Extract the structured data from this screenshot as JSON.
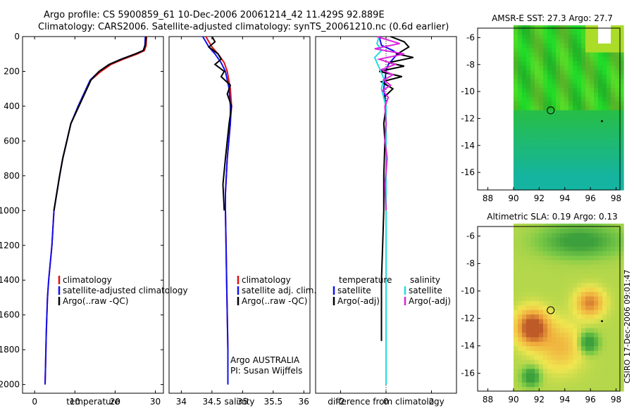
{
  "header": {
    "line1": "Argo profile: CS 5900859_61 10-Dec-2006 20061214_42 11.429S 92.889E",
    "line2": "Climatology: CARS2006. Satellite-adjusted climatology: synTS_20061210.nc (0.6d earlier)"
  },
  "footer": {
    "stamp": "CSIRO 17-Dec-2006 09:01:47"
  },
  "colors": {
    "clim": "#dd1111",
    "sat": "#1111ee",
    "argo": "#000000",
    "sal_sat": "#22dddd",
    "sal_argo": "#dd22dd"
  },
  "chart_data": [
    {
      "type": "line",
      "id": "temperature",
      "xlabel": "temperature",
      "ylabel": "",
      "xlim": [
        -3,
        32
      ],
      "ylim": [
        2050,
        0
      ],
      "xticks": [
        0,
        10,
        20,
        30
      ],
      "yticks": [
        0,
        200,
        400,
        600,
        800,
        1000,
        1200,
        1400,
        1600,
        1800,
        2000
      ],
      "legend": [
        "climatology",
        "satellite-adjusted climatology",
        "Argo(..raw -QC)"
      ],
      "series": [
        {
          "name": "climatology",
          "color": "clim",
          "x": [
            27.8,
            27.7,
            27.3,
            25.5,
            22,
            19,
            16.5,
            14,
            13,
            12,
            11,
            9,
            8,
            7,
            6.2,
            5.5,
            4.8,
            4.3,
            3.9,
            3.5,
            3.2,
            2.9,
            2.7,
            2.6
          ],
          "y": [
            0,
            50,
            80,
            100,
            130,
            160,
            200,
            250,
            300,
            350,
            400,
            500,
            600,
            700,
            800,
            900,
            1000,
            1200,
            1300,
            1400,
            1500,
            1700,
            1900,
            2000
          ]
        },
        {
          "name": "satellite-adjusted climatology",
          "color": "sat",
          "x": [
            27.5,
            27.4,
            27,
            25,
            21.5,
            18.5,
            16,
            13.8,
            12.8,
            11.8,
            10.8,
            9,
            8,
            7,
            6.2,
            5.5,
            4.8,
            4.3,
            3.9,
            3.5,
            3.2,
            2.9,
            2.7,
            2.6
          ],
          "y": [
            0,
            50,
            80,
            100,
            130,
            160,
            200,
            250,
            300,
            350,
            400,
            500,
            600,
            700,
            800,
            900,
            1000,
            1200,
            1300,
            1400,
            1500,
            1700,
            1900,
            2000
          ]
        },
        {
          "name": "Argo(..raw -QC)",
          "color": "argo",
          "x": [
            27.7,
            27.5,
            27,
            25,
            21.5,
            18.5,
            16,
            14,
            13,
            12,
            11,
            9,
            8,
            7,
            6.2,
            5.5,
            4.8
          ],
          "y": [
            0,
            50,
            80,
            100,
            130,
            160,
            200,
            250,
            300,
            350,
            400,
            500,
            600,
            700,
            800,
            900,
            1000
          ]
        }
      ]
    },
    {
      "type": "line",
      "id": "salinity",
      "xlabel": "salinity",
      "ylabel": "",
      "xlim": [
        33.8,
        36.1
      ],
      "ylim": [
        2050,
        0
      ],
      "xticks": [
        34,
        34.5,
        35,
        35.5,
        36
      ],
      "yticks": [],
      "legend": [
        "climatology",
        "satellite adj. clim.",
        "Argo(..raw -QC)"
      ],
      "annotations": [
        "Argo AUSTRALIA",
        "PI: Susan Wijffels"
      ],
      "series": [
        {
          "name": "climatology",
          "color": "clim",
          "x": [
            34.4,
            34.45,
            34.5,
            34.6,
            34.7,
            34.75,
            34.8,
            34.82,
            34.8,
            34.75,
            34.72,
            34.72,
            34.73,
            34.74,
            34.75,
            34.76,
            34.76
          ],
          "y": [
            0,
            30,
            60,
            100,
            150,
            200,
            300,
            400,
            500,
            700,
            900,
            1000,
            1200,
            1400,
            1600,
            1800,
            2000
          ]
        },
        {
          "name": "satellite adj. clim.",
          "color": "sat",
          "x": [
            34.35,
            34.4,
            34.45,
            34.55,
            34.65,
            34.72,
            34.78,
            34.8,
            34.8,
            34.75,
            34.72,
            34.72,
            34.73,
            34.74,
            34.75,
            34.76,
            34.76
          ],
          "y": [
            0,
            30,
            60,
            100,
            150,
            200,
            300,
            400,
            500,
            700,
            900,
            1000,
            1200,
            1400,
            1600,
            1800,
            2000
          ]
        },
        {
          "name": "Argo(..raw -QC)",
          "color": "argo",
          "x": [
            34.5,
            34.55,
            34.45,
            34.6,
            34.65,
            34.55,
            34.7,
            34.65,
            34.8,
            34.75,
            34.82,
            34.78,
            34.75,
            34.72,
            34.68,
            34.7
          ],
          "y": [
            0,
            30,
            60,
            100,
            130,
            160,
            200,
            230,
            280,
            330,
            400,
            500,
            600,
            700,
            850,
            1000
          ]
        }
      ]
    },
    {
      "type": "line",
      "id": "difference",
      "xlabel": "difference from climatology",
      "ylabel": "",
      "xlim": [
        -3.1,
        3.1
      ],
      "ylim": [
        2050,
        0
      ],
      "xticks": [
        -2,
        0,
        2
      ],
      "yticks": [],
      "legend": [
        "temperature",
        "satellite",
        "Argo(-adj)",
        "salinity",
        "satellite",
        "Argo(-adj)"
      ],
      "series": [
        {
          "name": "temperature satellite",
          "color": "sat",
          "x": [
            -0.3,
            -0.2,
            0.3,
            0.5,
            0.3,
            0.1,
            0,
            -0.1,
            0,
            0,
            0,
            0,
            0,
            0,
            0,
            0,
            0
          ],
          "y": [
            0,
            50,
            80,
            100,
            130,
            160,
            200,
            300,
            400,
            600,
            800,
            1000,
            1200,
            1400,
            1600,
            1800,
            2000
          ]
        },
        {
          "name": "temperature Argo(-adj)",
          "color": "argo",
          "x": [
            0.2,
            0.8,
            1.0,
            0.5,
            1.2,
            0.1,
            0.8,
            -0.3,
            0.7,
            -0.2,
            0.3,
            -0.1,
            0,
            -0.1,
            -0.05,
            -0.1,
            -0.1,
            -0.15,
            -0.2,
            -0.2,
            -0.2
          ],
          "y": [
            0,
            30,
            60,
            100,
            120,
            150,
            170,
            200,
            230,
            260,
            300,
            350,
            400,
            500,
            600,
            800,
            1000,
            1200,
            1400,
            1600,
            1750
          ]
        },
        {
          "name": "salinity satellite",
          "color": "sal_sat",
          "x": [
            -0.3,
            -0.4,
            -0.2,
            -0.5,
            -0.3,
            -0.1,
            -0.2,
            0,
            0,
            0,
            0,
            0,
            0
          ],
          "y": [
            0,
            40,
            80,
            120,
            180,
            240,
            300,
            400,
            600,
            800,
            1000,
            1500,
            2000
          ]
        },
        {
          "name": "salinity Argo(-adj)",
          "color": "sal_argo",
          "x": [
            -0.4,
            0.6,
            -0.5,
            0.8,
            -0.3,
            0.4,
            -0.2,
            0.3,
            -0.1,
            0.2,
            -0.15,
            0.1,
            -0.05,
            0,
            -0.05,
            0.05,
            -0.05,
            0
          ],
          "y": [
            0,
            40,
            70,
            100,
            130,
            160,
            190,
            220,
            250,
            280,
            310,
            350,
            400,
            500,
            600,
            700,
            850,
            1000
          ]
        }
      ]
    },
    {
      "type": "heatmap",
      "id": "sst-map",
      "title": "AMSR-E SST: 27.3 Argo: 27.7",
      "xlim": [
        87.2,
        98.3
      ],
      "ylim": [
        -17.3,
        -5.3
      ],
      "xticks": [
        88,
        90,
        92,
        94,
        96,
        98
      ],
      "yticks": [
        -6,
        -8,
        -10,
        -12,
        -14,
        -16
      ],
      "profile_marker": {
        "lon": 92.9,
        "lat": -11.4
      }
    },
    {
      "type": "heatmap",
      "id": "sla-map",
      "title": "Altimetric SLA: 0.19 Argo: 0.13",
      "xlim": [
        87.2,
        98.3
      ],
      "ylim": [
        -17.3,
        -5.3
      ],
      "xticks": [
        88,
        90,
        92,
        94,
        96,
        98
      ],
      "yticks": [
        -6,
        -8,
        -10,
        -12,
        -14,
        -16
      ],
      "profile_marker": {
        "lon": 92.9,
        "lat": -11.4
      }
    }
  ]
}
